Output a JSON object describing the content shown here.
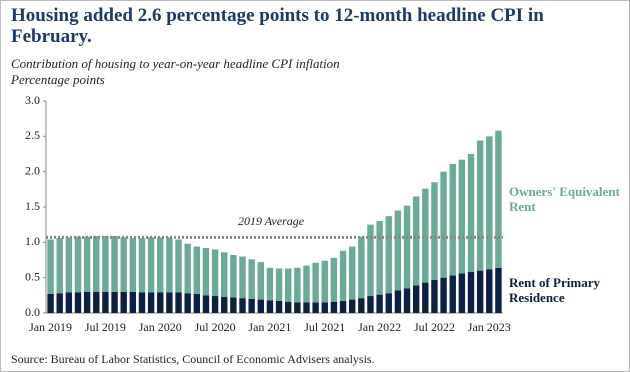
{
  "chart_data": {
    "type": "stacked-bar",
    "title": "Housing added 2.6 percentage points to 12-month headline CPI in February.",
    "subtitle": "Contribution of housing to year-on-year headline CPI inflation",
    "y_label": "Percentage points",
    "source": "Source: Bureau of Labor Statistics, Council of Economic Advisers analysis.",
    "categories": [
      "Jan 2019",
      null,
      null,
      null,
      null,
      null,
      "Jul 2019",
      null,
      null,
      null,
      null,
      null,
      "Jan 2020",
      null,
      null,
      null,
      null,
      null,
      "Jul 2020",
      null,
      null,
      null,
      null,
      null,
      "Jan 2021",
      null,
      null,
      null,
      null,
      null,
      "Jul 2021",
      null,
      null,
      null,
      null,
      null,
      "Jan 2022",
      null,
      null,
      null,
      null,
      null,
      "Jul 2022",
      null,
      null,
      null,
      null,
      null,
      "Jan 2023",
      null
    ],
    "series": [
      {
        "name": "Rent of Primary Residence",
        "color": "#0c1f45",
        "values": [
          0.27,
          0.28,
          0.29,
          0.29,
          0.3,
          0.3,
          0.3,
          0.3,
          0.3,
          0.3,
          0.29,
          0.29,
          0.29,
          0.29,
          0.29,
          0.28,
          0.27,
          0.25,
          0.24,
          0.23,
          0.22,
          0.21,
          0.2,
          0.19,
          0.18,
          0.17,
          0.16,
          0.15,
          0.15,
          0.15,
          0.15,
          0.16,
          0.17,
          0.19,
          0.21,
          0.24,
          0.26,
          0.28,
          0.32,
          0.35,
          0.39,
          0.43,
          0.47,
          0.5,
          0.53,
          0.56,
          0.58,
          0.6,
          0.62,
          0.64
        ]
      },
      {
        "name": "Owners' Equivalent Rent",
        "color": "#6aab97",
        "values": [
          0.77,
          0.78,
          0.78,
          0.79,
          0.78,
          0.79,
          0.79,
          0.79,
          0.77,
          0.76,
          0.77,
          0.78,
          0.78,
          0.78,
          0.75,
          0.7,
          0.67,
          0.67,
          0.66,
          0.63,
          0.6,
          0.59,
          0.56,
          0.53,
          0.46,
          0.46,
          0.47,
          0.49,
          0.52,
          0.56,
          0.59,
          0.62,
          0.71,
          0.75,
          0.87,
          1.01,
          1.04,
          1.09,
          1.13,
          1.17,
          1.26,
          1.33,
          1.38,
          1.5,
          1.58,
          1.61,
          1.67,
          1.84,
          1.88,
          1.94
        ]
      }
    ],
    "average": {
      "value": 1.07,
      "label": "2019 Average"
    },
    "ylim": [
      0,
      3
    ],
    "yticks": [
      {
        "value": 0,
        "label": "0.0"
      },
      0.5,
      {
        "value": 1,
        "label": "1.0"
      },
      1.5,
      {
        "value": 2,
        "label": "2.0"
      },
      2.5,
      {
        "value": 3,
        "label": "3.0"
      }
    ],
    "grid": false
  }
}
